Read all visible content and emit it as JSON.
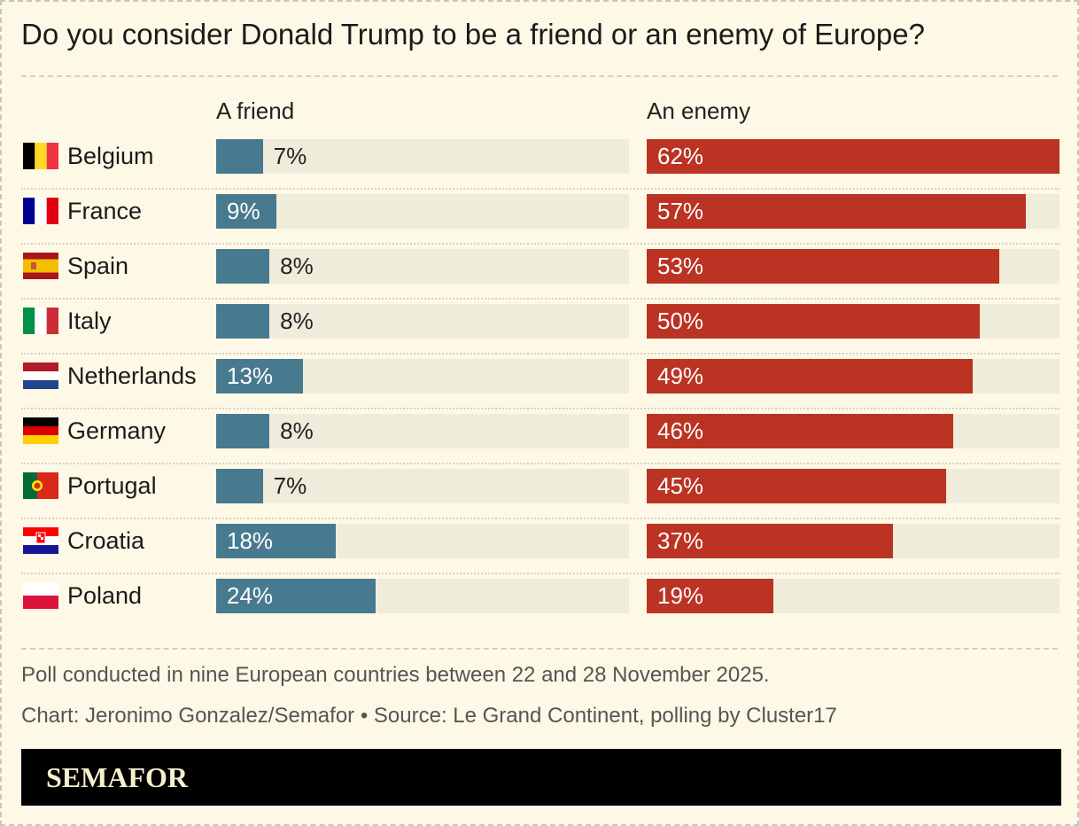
{
  "title": "Do you consider Donald Trump to be a friend or an enemy of Europe?",
  "colors": {
    "friend": "#477a8f",
    "enemy": "#bb3323",
    "track": "#efecdb",
    "background": "#fdf9e6"
  },
  "chart_data": {
    "type": "bar",
    "orientation": "horizontal",
    "categories": [
      "Belgium",
      "France",
      "Spain",
      "Italy",
      "Netherlands",
      "Germany",
      "Portugal",
      "Croatia",
      "Poland"
    ],
    "series": [
      {
        "name": "A friend",
        "values": [
          7,
          9,
          8,
          8,
          13,
          8,
          7,
          18,
          24
        ]
      },
      {
        "name": "An enemy",
        "values": [
          62,
          57,
          53,
          50,
          49,
          46,
          45,
          37,
          19
        ]
      }
    ],
    "unit": "%",
    "xlim": [
      0,
      62
    ]
  },
  "flags": [
    "belgium-flag",
    "france-flag",
    "spain-flag",
    "italy-flag",
    "netherlands-flag",
    "germany-flag",
    "portugal-flag",
    "croatia-flag",
    "poland-flag"
  ],
  "notes": {
    "description": "Poll conducted in nine European countries between 22 and 28 November 2025.",
    "credit": "Chart: Jeronimo Gonzalez/Semafor • Source: Le Grand Continent, polling by Cluster17"
  },
  "footer": {
    "logo": "SEMAFOR"
  }
}
